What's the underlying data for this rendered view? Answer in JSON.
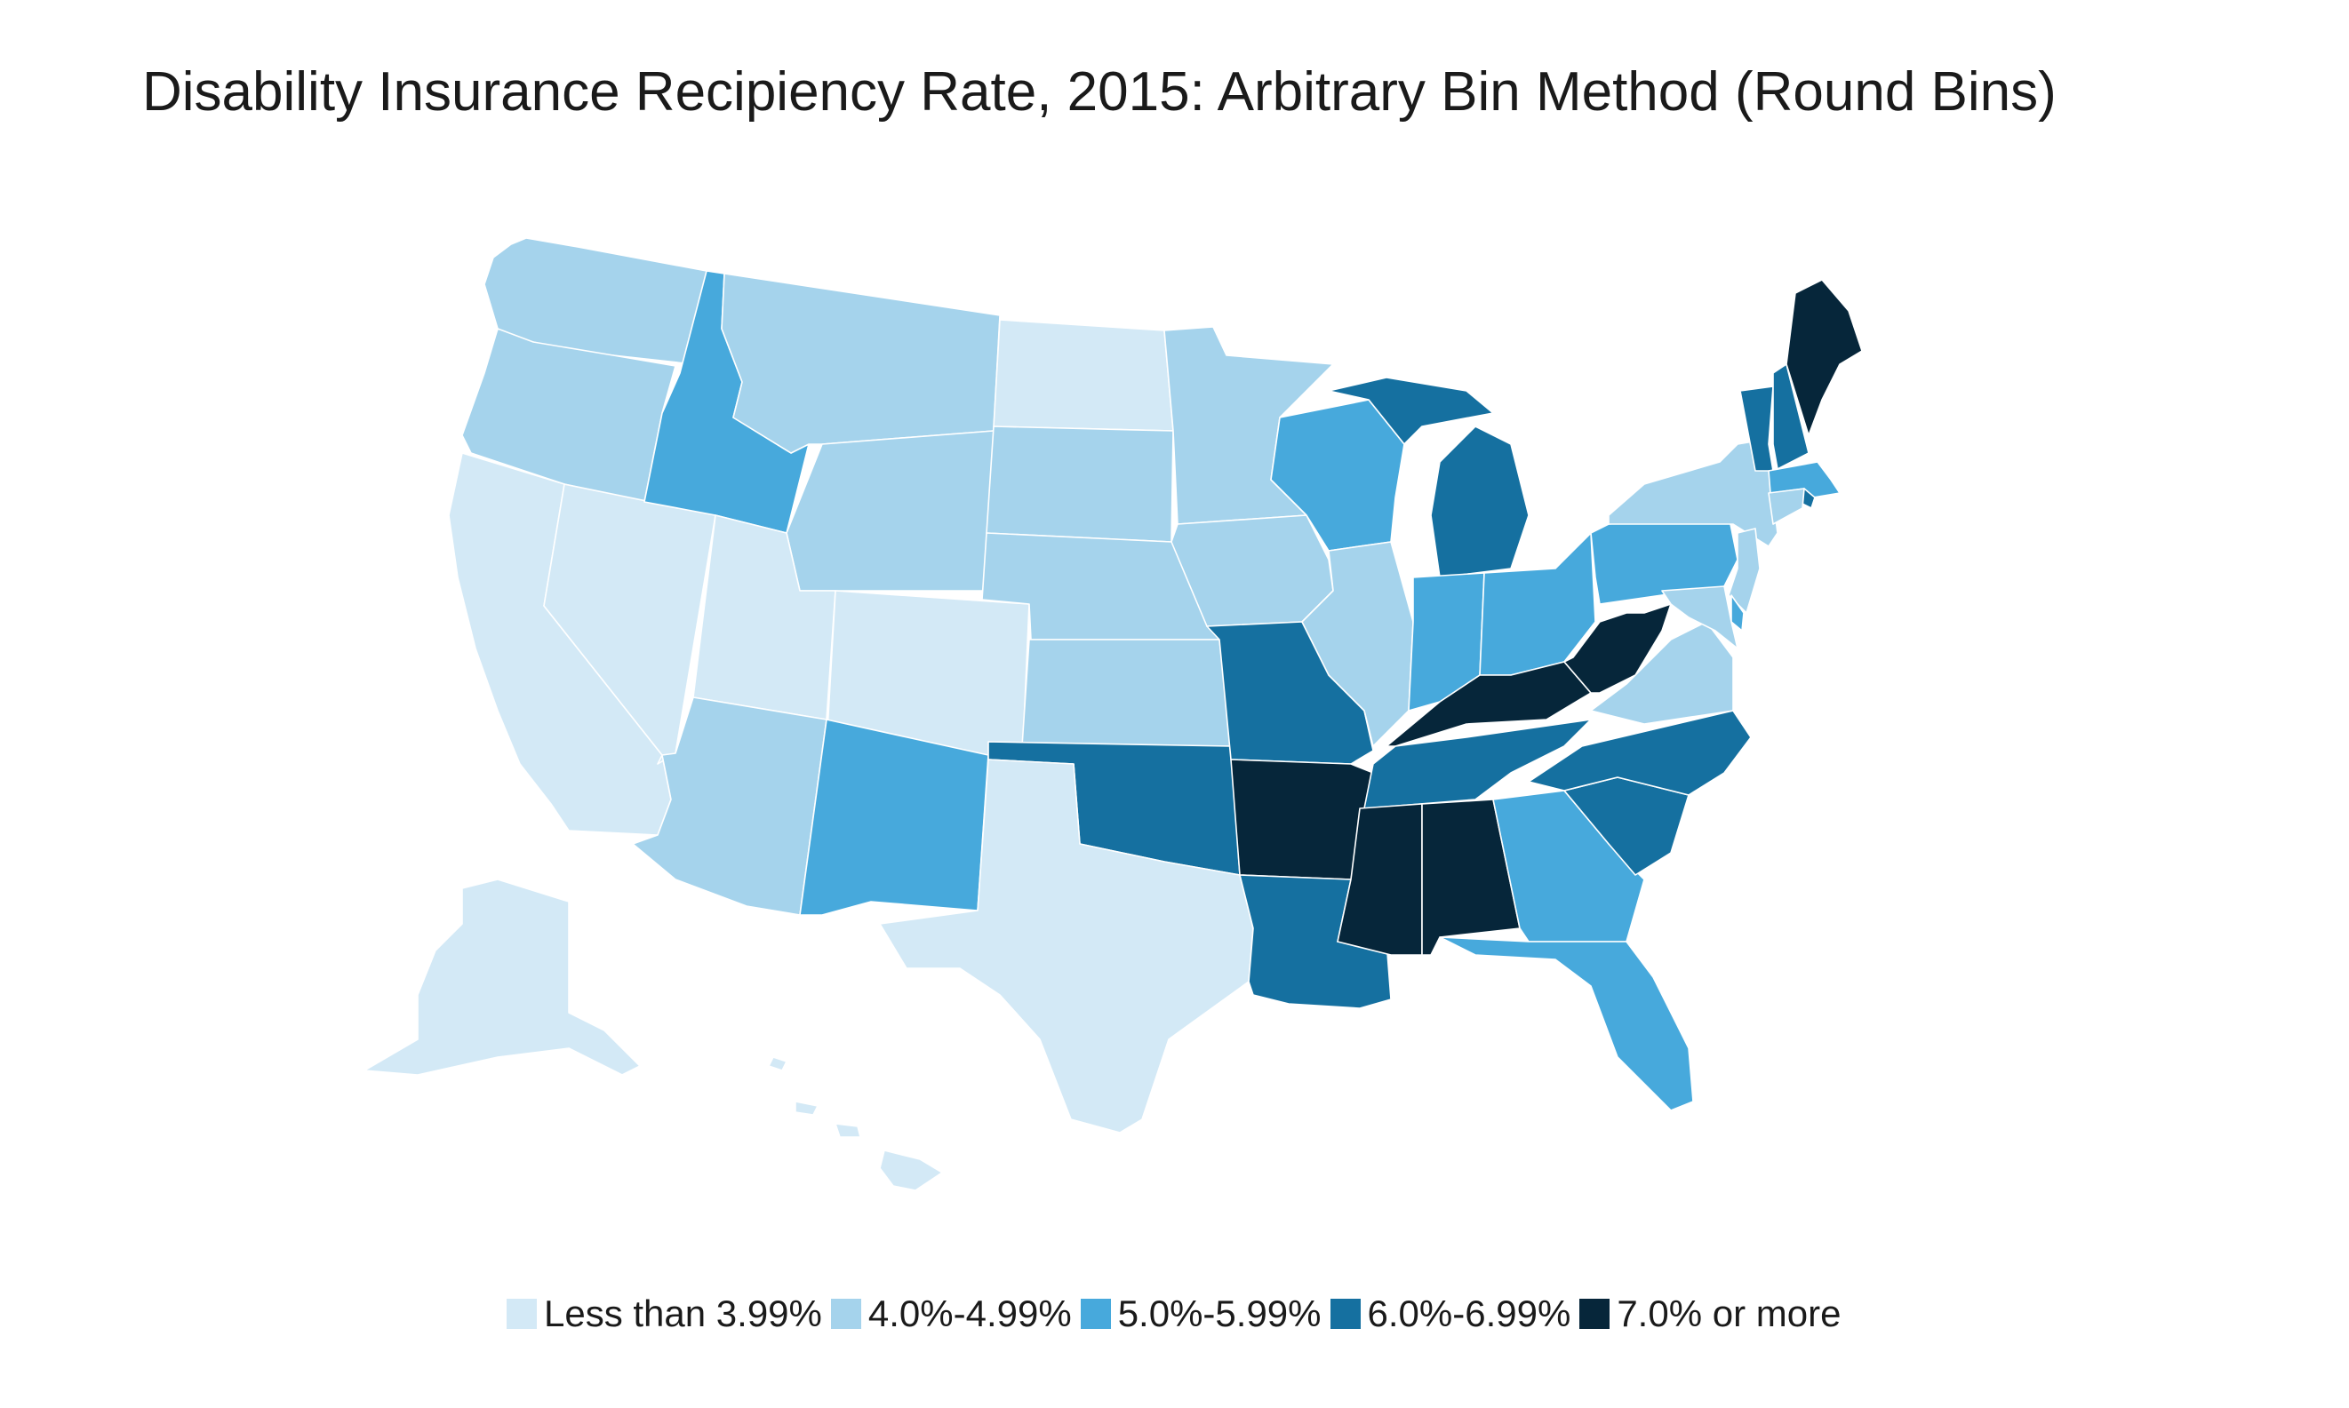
{
  "title": "Disability Insurance Recipiency Rate, 2015: Arbitrary Bin Method (Round Bins)",
  "legend": [
    {
      "label": "Less than 3.99%",
      "color": "#d3e9f6"
    },
    {
      "label": "4.0%-4.99%",
      "color": "#a5d3ec"
    },
    {
      "label": "5.0%-5.99%",
      "color": "#47a9dc"
    },
    {
      "label": "6.0%-6.99%",
      "color": "#1570a0"
    },
    {
      "label": "7.0% or more",
      "color": "#06263a"
    }
  ],
  "states": {
    "WA": 1,
    "OR": 1,
    "CA": 0,
    "NV": 0,
    "ID": 2,
    "MT": 1,
    "WY": 1,
    "UT": 0,
    "AZ": 1,
    "CO": 0,
    "NM": 2,
    "ND": 0,
    "SD": 1,
    "NE": 1,
    "KS": 1,
    "OK": 3,
    "TX": 0,
    "MN": 1,
    "IA": 1,
    "MO": 3,
    "AR": 4,
    "LA": 3,
    "WI": 2,
    "IL": 1,
    "MI": 3,
    "IN": 2,
    "OH": 2,
    "KY": 4,
    "TN": 3,
    "MS": 4,
    "AL": 4,
    "GA": 2,
    "FL": 2,
    "SC": 3,
    "NC": 3,
    "VA": 1,
    "WV": 4,
    "PA": 2,
    "NY": 1,
    "VT": 3,
    "NH": 3,
    "ME": 4,
    "MA": 2,
    "RI": 3,
    "CT": 1,
    "NJ": 1,
    "DE": 2,
    "MD": 1,
    "AK": 0,
    "HI": 0
  }
}
